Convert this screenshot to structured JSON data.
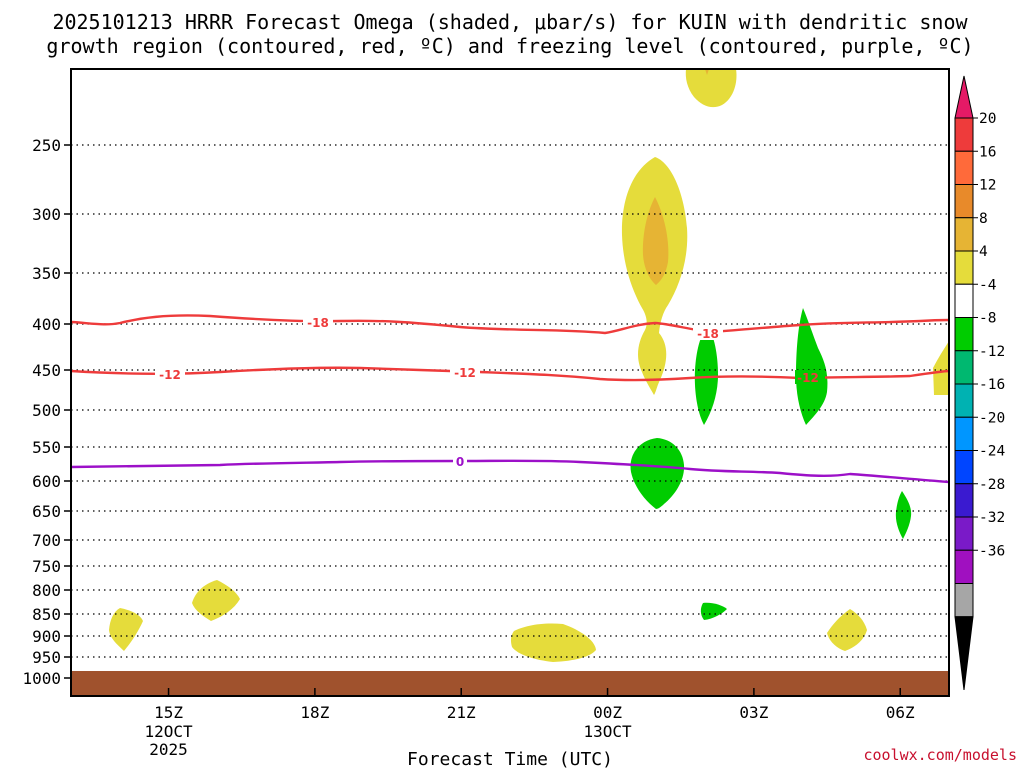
{
  "chart_data": {
    "type": "contour",
    "title_line1": "2025101213 HRRR Forecast Omega (shaded, μbar/s) for KUIN with dendritic snow",
    "title_line2": "growth region (contoured, red, ºC) and freezing level (contoured, purple, ºC)",
    "xlabel": "Forecast Time (UTC)",
    "credit": "coolwx.com/models",
    "x_range_hours": [
      13.0,
      31.0
    ],
    "x_ticks": [
      {
        "hour": 15,
        "label": "15Z",
        "sub1": "12OCT",
        "sub2": "2025"
      },
      {
        "hour": 18,
        "label": "18Z",
        "sub1": "",
        "sub2": ""
      },
      {
        "hour": 21,
        "label": "21Z",
        "sub1": "",
        "sub2": ""
      },
      {
        "hour": 24,
        "label": "00Z",
        "sub1": "13OCT",
        "sub2": ""
      },
      {
        "hour": 27,
        "label": "03Z",
        "sub1": "",
        "sub2": ""
      },
      {
        "hour": 30,
        "label": "06Z",
        "sub1": "",
        "sub2": ""
      }
    ],
    "y_pressure_ticks": [
      "250",
      "300",
      "350",
      "400",
      "450",
      "500",
      "550",
      "600",
      "650",
      "700",
      "750",
      "800",
      "850",
      "900",
      "950",
      "1000"
    ],
    "colorbar": {
      "labels": [
        "20",
        "16",
        "12",
        "8",
        "4",
        "-4",
        "-8",
        "-12",
        "-16",
        "-20",
        "-24",
        "-28",
        "-32",
        "-36"
      ],
      "colors": [
        "#e51a66",
        "#ee3b3b",
        "#ff6a3a",
        "#e88a2a",
        "#e6b434",
        "#e5dc3b",
        "#ffffff",
        "#00cc00",
        "#00b870",
        "#00b2b2",
        "#0096ff",
        "#0045ff",
        "#3a1ad0",
        "#7a1ac8",
        "#a010c0",
        "#a6a6a6",
        "#000000"
      ]
    },
    "contours": {
      "freezing_level": {
        "label": "0",
        "color": "#9c10c8"
      },
      "dendritic_upper": {
        "label": "-18",
        "color": "#ee3b3b"
      },
      "dendritic_lower": {
        "label": "-12",
        "color": "#ee3b3b"
      }
    },
    "omega_regions": [
      {
        "name": "yellow-top-00z",
        "value": 4
      },
      {
        "name": "yellow-column-01z",
        "value": 4
      },
      {
        "name": "orange-core-01z",
        "value": 8
      },
      {
        "name": "yellow-lower-01z",
        "value": 4
      },
      {
        "name": "green-01z-midlevel",
        "value": -4
      },
      {
        "name": "green-02z-column",
        "value": -4
      },
      {
        "name": "green-04z-column",
        "value": -4
      },
      {
        "name": "green-06z-small",
        "value": -4
      },
      {
        "name": "green-02z-850",
        "value": -4
      },
      {
        "name": "yellow-14z-880",
        "value": 4
      },
      {
        "name": "yellow-16z-815",
        "value": 4
      },
      {
        "name": "yellow-23z-910",
        "value": 4
      },
      {
        "name": "yellow-05z-900",
        "value": 4
      },
      {
        "name": "yellow-right-edge-450",
        "value": 4
      }
    ],
    "surface": {
      "label": "ground",
      "color": "#a0522d"
    }
  }
}
